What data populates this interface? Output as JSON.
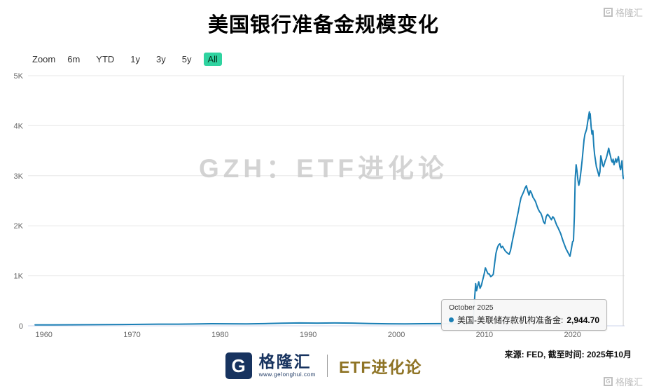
{
  "title": "美国银行准备金规模变化",
  "toolbar": {
    "zoom_label": "Zoom",
    "buttons": [
      "6m",
      "YTD",
      "1y",
      "3y",
      "5y",
      "All"
    ],
    "selected": "All",
    "selected_color": "#2fd3a0"
  },
  "watermark": "GZH：ETF进化论",
  "tooltip": {
    "date": "October 2025",
    "series_label": "美国-美联储存款机构准备金:",
    "value": "2,944.70",
    "dot_color": "#1a7fb5"
  },
  "source_note": "来源: FED, 截至时间: 2025年10月",
  "footer": {
    "logo_letter": "G",
    "brand_name": "格隆汇",
    "brand_url": "www.gelonghui.com",
    "slogan": "ETF进化论",
    "brand_color": "#17335f",
    "slogan_color": "#8e7324"
  },
  "corner_watermark": "格隆汇",
  "chart_data": {
    "type": "line",
    "title": "美国银行准备金规模变化",
    "xlabel": "",
    "ylabel": "",
    "xlim": [
      1958.2,
      2025.9
    ],
    "ylim": [
      0,
      5000
    ],
    "grid": "horizontal",
    "legend": "none",
    "crosshair_x": 2025.75,
    "x_ticks": [
      {
        "label": "1960",
        "value": 1960
      },
      {
        "label": "1970",
        "value": 1970
      },
      {
        "label": "1980",
        "value": 1980
      },
      {
        "label": "1990",
        "value": 1990
      },
      {
        "label": "2000",
        "value": 2000
      },
      {
        "label": "2010",
        "value": 2010
      },
      {
        "label": "2020",
        "value": 2020
      }
    ],
    "y_ticks": [
      {
        "label": "0",
        "value": 0
      },
      {
        "label": "1K",
        "value": 1000
      },
      {
        "label": "2K",
        "value": 2000
      },
      {
        "label": "3K",
        "value": 3000
      },
      {
        "label": "4K",
        "value": 4000
      },
      {
        "label": "5K",
        "value": 5000
      }
    ],
    "series": [
      {
        "name": "美国-美联储存款机构准备金",
        "color": "#1a7fb5",
        "last_point_label": "2,944.70",
        "points": [
          [
            1959,
            19
          ],
          [
            1961,
            20
          ],
          [
            1963,
            21
          ],
          [
            1965,
            22
          ],
          [
            1967,
            25
          ],
          [
            1969,
            27
          ],
          [
            1971,
            30
          ],
          [
            1973,
            33
          ],
          [
            1975,
            34
          ],
          [
            1977,
            37
          ],
          [
            1979,
            42
          ],
          [
            1981,
            41
          ],
          [
            1983,
            39
          ],
          [
            1985,
            44
          ],
          [
            1987,
            52
          ],
          [
            1989,
            57
          ],
          [
            1991,
            55
          ],
          [
            1993,
            58
          ],
          [
            1995,
            54
          ],
          [
            1997,
            46
          ],
          [
            1999,
            41
          ],
          [
            2001,
            39
          ],
          [
            2003,
            42
          ],
          [
            2005,
            44
          ],
          [
            2007,
            41
          ],
          [
            2008.5,
            46
          ],
          [
            2008.7,
            47
          ],
          [
            2008.8,
            315
          ],
          [
            2008.9,
            609
          ],
          [
            2009,
            843
          ],
          [
            2009.1,
            701
          ],
          [
            2009.2,
            771
          ],
          [
            2009.35,
            880
          ],
          [
            2009.5,
            750
          ],
          [
            2009.65,
            810
          ],
          [
            2009.8,
            920
          ],
          [
            2009.95,
            1025
          ],
          [
            2010.1,
            1160
          ],
          [
            2010.25,
            1100
          ],
          [
            2010.4,
            1041
          ],
          [
            2010.55,
            1035
          ],
          [
            2010.7,
            985
          ],
          [
            2010.85,
            1000
          ],
          [
            2011,
            1031
          ],
          [
            2011.15,
            1250
          ],
          [
            2011.3,
            1450
          ],
          [
            2011.45,
            1550
          ],
          [
            2011.6,
            1618
          ],
          [
            2011.75,
            1640
          ],
          [
            2011.9,
            1560
          ],
          [
            2012.05,
            1590
          ],
          [
            2012.2,
            1540
          ],
          [
            2012.35,
            1500
          ],
          [
            2012.5,
            1470
          ],
          [
            2012.65,
            1450
          ],
          [
            2012.8,
            1430
          ],
          [
            2012.95,
            1500
          ],
          [
            2013.1,
            1640
          ],
          [
            2013.25,
            1770
          ],
          [
            2013.4,
            1900
          ],
          [
            2013.55,
            2030
          ],
          [
            2013.7,
            2170
          ],
          [
            2013.85,
            2300
          ],
          [
            2014,
            2440
          ],
          [
            2014.15,
            2560
          ],
          [
            2014.3,
            2620
          ],
          [
            2014.45,
            2680
          ],
          [
            2014.6,
            2750
          ],
          [
            2014.75,
            2800
          ],
          [
            2014.9,
            2700
          ],
          [
            2015.05,
            2610
          ],
          [
            2015.2,
            2700
          ],
          [
            2015.35,
            2650
          ],
          [
            2015.5,
            2570
          ],
          [
            2015.65,
            2530
          ],
          [
            2015.8,
            2480
          ],
          [
            2015.95,
            2400
          ],
          [
            2016.1,
            2330
          ],
          [
            2016.25,
            2280
          ],
          [
            2016.4,
            2250
          ],
          [
            2016.55,
            2180
          ],
          [
            2016.7,
            2080
          ],
          [
            2016.85,
            2040
          ],
          [
            2017,
            2180
          ],
          [
            2017.15,
            2230
          ],
          [
            2017.3,
            2200
          ],
          [
            2017.45,
            2160
          ],
          [
            2017.6,
            2120
          ],
          [
            2017.75,
            2180
          ],
          [
            2017.9,
            2150
          ],
          [
            2018.05,
            2080
          ],
          [
            2018.2,
            2010
          ],
          [
            2018.35,
            1960
          ],
          [
            2018.5,
            1900
          ],
          [
            2018.65,
            1840
          ],
          [
            2018.8,
            1760
          ],
          [
            2018.95,
            1680
          ],
          [
            2019.1,
            1610
          ],
          [
            2019.25,
            1540
          ],
          [
            2019.4,
            1490
          ],
          [
            2019.55,
            1440
          ],
          [
            2019.7,
            1390
          ],
          [
            2019.85,
            1530
          ],
          [
            2020,
            1680
          ],
          [
            2020.1,
            1700
          ],
          [
            2020.2,
            2200
          ],
          [
            2020.3,
            2950
          ],
          [
            2020.4,
            3220
          ],
          [
            2020.5,
            3100
          ],
          [
            2020.6,
            2920
          ],
          [
            2020.7,
            2810
          ],
          [
            2020.8,
            2880
          ],
          [
            2020.9,
            3020
          ],
          [
            2021,
            3170
          ],
          [
            2021.1,
            3340
          ],
          [
            2021.2,
            3540
          ],
          [
            2021.3,
            3720
          ],
          [
            2021.4,
            3830
          ],
          [
            2021.5,
            3880
          ],
          [
            2021.6,
            3940
          ],
          [
            2021.7,
            4060
          ],
          [
            2021.8,
            4170
          ],
          [
            2021.9,
            4278
          ],
          [
            2021.95,
            4140
          ],
          [
            2022,
            4240
          ],
          [
            2022.1,
            3980
          ],
          [
            2022.2,
            3830
          ],
          [
            2022.3,
            3900
          ],
          [
            2022.4,
            3600
          ],
          [
            2022.5,
            3420
          ],
          [
            2022.6,
            3300
          ],
          [
            2022.7,
            3180
          ],
          [
            2022.8,
            3120
          ],
          [
            2022.9,
            3060
          ],
          [
            2023,
            2990
          ],
          [
            2023.1,
            3080
          ],
          [
            2023.2,
            3400
          ],
          [
            2023.3,
            3320
          ],
          [
            2023.4,
            3220
          ],
          [
            2023.5,
            3180
          ],
          [
            2023.6,
            3240
          ],
          [
            2023.7,
            3300
          ],
          [
            2023.8,
            3340
          ],
          [
            2023.9,
            3400
          ],
          [
            2024,
            3480
          ],
          [
            2024.1,
            3550
          ],
          [
            2024.2,
            3460
          ],
          [
            2024.3,
            3390
          ],
          [
            2024.4,
            3310
          ],
          [
            2024.5,
            3270
          ],
          [
            2024.6,
            3330
          ],
          [
            2024.7,
            3220
          ],
          [
            2024.8,
            3280
          ],
          [
            2024.9,
            3340
          ],
          [
            2025,
            3270
          ],
          [
            2025.1,
            3320
          ],
          [
            2025.2,
            3380
          ],
          [
            2025.3,
            3260
          ],
          [
            2025.35,
            3180
          ],
          [
            2025.45,
            3120
          ],
          [
            2025.55,
            3230
          ],
          [
            2025.6,
            3300
          ],
          [
            2025.65,
            3150
          ],
          [
            2025.7,
            3020
          ],
          [
            2025.75,
            2944.7
          ]
        ]
      }
    ]
  }
}
